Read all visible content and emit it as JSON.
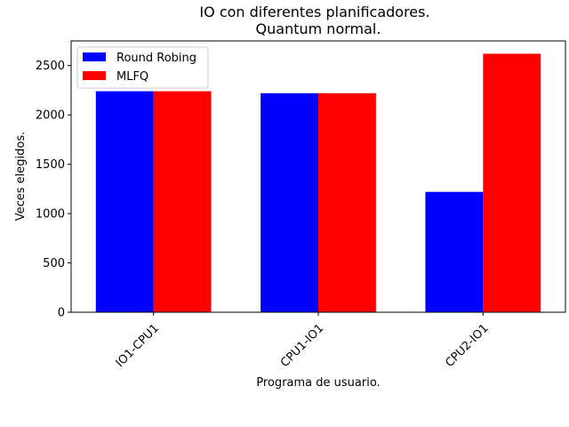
{
  "chart_data": {
    "type": "bar",
    "title": "IO con diferentes planificadores.",
    "subtitle": "Quantum normal.",
    "xlabel": "Programa de usuario.",
    "ylabel": "Veces elegidos.",
    "categories": [
      "IO1-CPU1",
      "CPU1-IO1",
      "CPU2-IO1"
    ],
    "series": [
      {
        "name": "Round Robing",
        "color": "#0000ff",
        "values": [
          2240,
          2220,
          1220
        ]
      },
      {
        "name": "MLFQ",
        "color": "#ff0000",
        "values": [
          2240,
          2220,
          2620
        ]
      }
    ],
    "ylim": [
      0,
      2750
    ],
    "yticks": [
      0,
      500,
      1000,
      1500,
      2000,
      2500
    ],
    "grid": false,
    "legend_position": "top-left",
    "xtick_rotation": 45
  }
}
